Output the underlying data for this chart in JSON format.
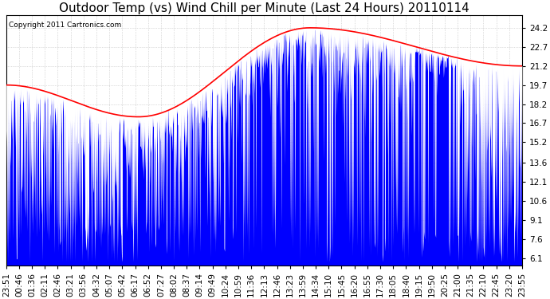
{
  "title": "Outdoor Temp (vs) Wind Chill per Minute (Last 24 Hours) 20110114",
  "copyright": "Copyright 2011 Cartronics.com",
  "yticks": [
    6.1,
    7.6,
    9.1,
    10.6,
    12.1,
    13.6,
    15.2,
    16.7,
    18.2,
    19.7,
    21.2,
    22.7,
    24.2
  ],
  "ylim": [
    5.5,
    25.2
  ],
  "outdoor_temp_color": "#ff0000",
  "wind_chill_color": "#0000ff",
  "background_color": "#ffffff",
  "grid_color": "#aaaaaa",
  "title_fontsize": 11,
  "tick_fontsize": 7.5,
  "x_labels": [
    "23:51",
    "00:46",
    "01:36",
    "02:11",
    "02:46",
    "03:21",
    "03:56",
    "04:32",
    "05:07",
    "05:42",
    "06:17",
    "06:52",
    "07:27",
    "08:02",
    "08:37",
    "09:14",
    "09:49",
    "10:24",
    "10:59",
    "11:36",
    "12:13",
    "12:46",
    "13:23",
    "13:59",
    "14:34",
    "15:10",
    "15:45",
    "16:20",
    "16:55",
    "17:30",
    "18:05",
    "18:40",
    "19:15",
    "19:50",
    "20:25",
    "21:00",
    "21:35",
    "22:10",
    "22:45",
    "23:20",
    "23:55"
  ]
}
